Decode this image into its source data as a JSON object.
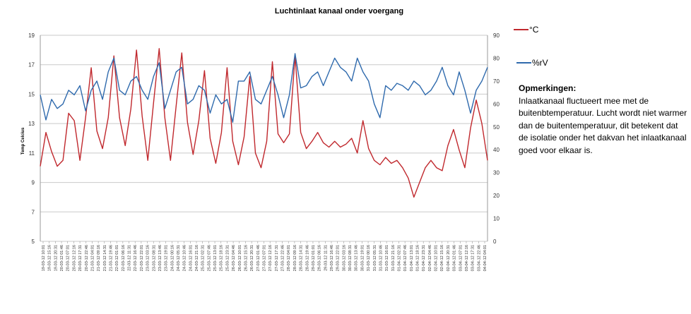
{
  "chart_data": {
    "type": "line",
    "title": "Luchtinlaat kanaal onder voergang",
    "ylabel": "Temp Celcius",
    "ylim": [
      5,
      19
    ],
    "y_ticks": [
      5,
      7,
      9,
      11,
      13,
      15,
      17,
      19
    ],
    "y2lim": [
      0,
      90
    ],
    "y2_ticks": [
      0,
      10,
      20,
      30,
      40,
      50,
      60,
      70,
      80,
      90
    ],
    "grid": true,
    "legend": "right",
    "x_tick_labels": [
      "19-03-12 10:01",
      "19-03-12 15:16",
      "19-03-12 20:31",
      "20-03-12 01:46",
      "20-03-12 07:01",
      "20-03-12 12:16",
      "20-03-12 17:31",
      "20-03-12 22:46",
      "21-03-12 04:01",
      "21-03-12 09:16",
      "21-03-12 14:31",
      "21-03-12 19:46",
      "22-03-12 01:01",
      "22-03-12 06:16",
      "22-03-12 11:31",
      "22-03-12 16:46",
      "22-03-12 22:01",
      "23-03-12 03:16",
      "23-03-12 08:31",
      "23-03-12 13:46",
      "23-03-12 19:01",
      "24-03-12 00:16",
      "24-03-12 05:31",
      "24-03-12 10:46",
      "24-03-12 16:01",
      "24-03-12 21:16",
      "25-03-12 02:31",
      "25-03-12 07:46",
      "25-03-12 13:01",
      "25-03-12 18:16",
      "25-03-12 23:31",
      "26-03-12 04:46",
      "26-03-12 10:01",
      "26-03-12 15:16",
      "26-03-12 20:31",
      "27-03-12 01:46",
      "27-03-12 07:01",
      "27-03-12 12:16",
      "27-03-12 17:31",
      "27-03-12 22:46",
      "28-03-12 04:01",
      "28-03-12 09:16",
      "28-03-12 14:31",
      "28-03-12 19:46",
      "29-03-12 01:01",
      "29-03-12 06:16",
      "29-03-12 11:31",
      "29-03-12 16:46",
      "29-03-12 22:01",
      "30-03-12 03:16",
      "30-03-12 08:31",
      "30-03-12 13:46",
      "30-03-12 19:01",
      "31-03-12 00:16",
      "31-03-12 05:31",
      "31-03-12 10:46",
      "31-03-12 16:01",
      "31-03-12 21:16",
      "01-04-12 02:31",
      "01-04-12 07:46",
      "01-04-12 13:01",
      "01-04-12 18:16",
      "01-04-12 23:31",
      "02-04-12 04:46",
      "02-04-12 10:01",
      "02-04-12 15:16",
      "02-04-12 20:31",
      "03-04-12 01:46",
      "03-04-12 07:01",
      "03-04-12 12:16",
      "03-04-12 17:31",
      "03-04-12 22:46",
      "04-04-12 04:01"
    ],
    "series": [
      {
        "name": "°C",
        "axis": "left",
        "color": "#c0282d",
        "values": [
          10.1,
          12.4,
          11.1,
          10.1,
          10.5,
          13.7,
          13.2,
          10.5,
          13.4,
          16.8,
          12.5,
          11.3,
          13.4,
          17.6,
          13.4,
          11.5,
          14.0,
          18.0,
          13.5,
          10.5,
          14.4,
          18.1,
          13.4,
          10.5,
          14.2,
          17.8,
          13.1,
          10.9,
          13.2,
          16.6,
          12.0,
          10.3,
          12.4,
          16.8,
          11.8,
          10.2,
          12.1,
          16.2,
          11.0,
          10.0,
          11.8,
          17.2,
          12.3,
          11.7,
          12.3,
          17.6,
          12.4,
          11.3,
          11.8,
          12.4,
          11.7,
          11.4,
          11.8,
          11.4,
          11.6,
          12.0,
          11.0,
          13.2,
          11.3,
          10.5,
          10.2,
          10.7,
          10.3,
          10.5,
          10.0,
          9.3,
          8.0,
          9.0,
          10.0,
          10.5,
          10.0,
          9.8,
          11.5,
          12.6,
          11.2,
          10.0,
          12.7,
          14.6,
          13.0,
          10.5
        ]
      },
      {
        "name": "%rV",
        "axis": "right",
        "color": "#2f6aad",
        "values": [
          64,
          53,
          62,
          58,
          60,
          66,
          64,
          68,
          57,
          66,
          70,
          62,
          74,
          80,
          66,
          64,
          70,
          72,
          66,
          62,
          72,
          78,
          58,
          66,
          74,
          76,
          60,
          62,
          68,
          66,
          56,
          64,
          60,
          62,
          52,
          70,
          70,
          74,
          62,
          60,
          66,
          72,
          64,
          54,
          64,
          82,
          67,
          68,
          72,
          74,
          68,
          74,
          80,
          76,
          74,
          70,
          80,
          74,
          70,
          60,
          54,
          68,
          66,
          69,
          68,
          66,
          70,
          68,
          64,
          66,
          70,
          76,
          68,
          64,
          74,
          66,
          56,
          66,
          70,
          76
        ]
      }
    ]
  },
  "notes": {
    "heading": "Opmerkingen:",
    "body": "Inlaatkanaal fluctueert mee met de buitenbtemperatuur. Lucht wordt niet warmer dan de buitentemperatuur, dit betekent dat de isolatie onder het dakvan het inlaatkanaal  goed voor elkaar is."
  }
}
